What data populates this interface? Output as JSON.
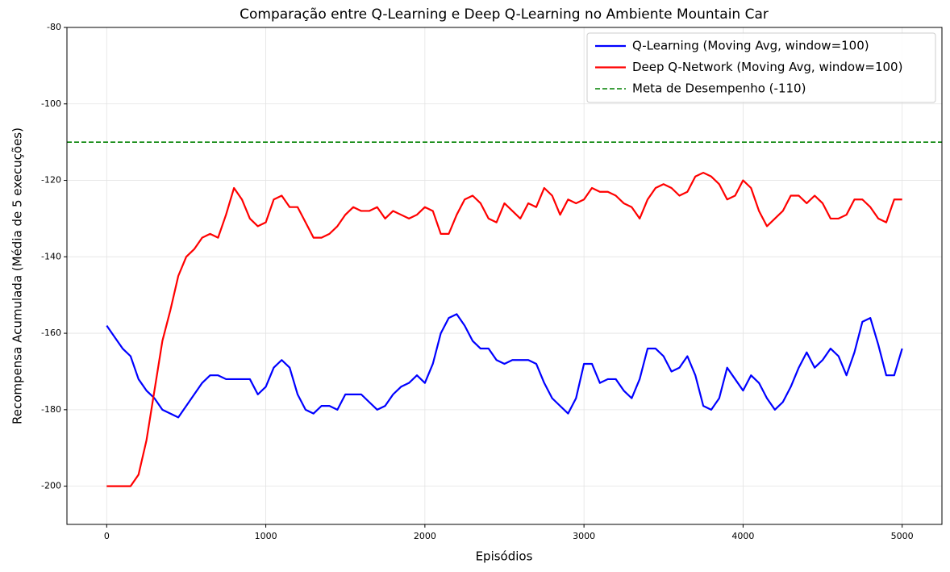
{
  "chart_data": {
    "type": "line",
    "title": "Comparação entre Q-Learning e Deep Q-Learning no Ambiente Mountain Car",
    "x_label": "Episódios",
    "y_label": "Recompensa Acumulada (Média de 5 execuções)",
    "x": [
      0,
      50,
      100,
      150,
      200,
      250,
      300,
      350,
      400,
      450,
      500,
      550,
      600,
      650,
      700,
      750,
      800,
      850,
      900,
      950,
      1000,
      1050,
      1100,
      1150,
      1200,
      1250,
      1300,
      1350,
      1400,
      1450,
      1500,
      1550,
      1600,
      1650,
      1700,
      1750,
      1800,
      1850,
      1900,
      1950,
      2000,
      2050,
      2100,
      2150,
      2200,
      2250,
      2300,
      2350,
      2400,
      2450,
      2500,
      2550,
      2600,
      2650,
      2700,
      2750,
      2800,
      2850,
      2900,
      2950,
      3000,
      3050,
      3100,
      3150,
      3200,
      3250,
      3300,
      3350,
      3400,
      3450,
      3500,
      3550,
      3600,
      3650,
      3700,
      3750,
      3800,
      3850,
      3900,
      3950,
      4000,
      4050,
      4100,
      4150,
      4200,
      4250,
      4300,
      4350,
      4400,
      4450,
      4500,
      4550,
      4600,
      4650,
      4700,
      4750,
      4800,
      4850,
      4900,
      4950,
      5000
    ],
    "series": [
      {
        "name": "Q-Learning (Moving Avg, window=100)",
        "color": "#0000ff",
        "values": [
          -158,
          -161,
          -164,
          -166,
          -172,
          -175,
          -177,
          -180,
          -181,
          -182,
          -179,
          -176,
          -173,
          -171,
          -171,
          -172,
          -172,
          -172,
          -172,
          -176,
          -174,
          -169,
          -167,
          -169,
          -176,
          -180,
          -181,
          -179,
          -179,
          -180,
          -176,
          -176,
          -176,
          -178,
          -180,
          -179,
          -176,
          -174,
          -173,
          -171,
          -173,
          -168,
          -160,
          -156,
          -155,
          -158,
          -162,
          -164,
          -164,
          -167,
          -168,
          -167,
          -167,
          -167,
          -168,
          -173,
          -177,
          -179,
          -181,
          -177,
          -168,
          -168,
          -173,
          -172,
          -172,
          -175,
          -177,
          -172,
          -164,
          -164,
          -166,
          -170,
          -169,
          -166,
          -171,
          -179,
          -180,
          -177,
          -169,
          -172,
          -175,
          -171,
          -173,
          -177,
          -180,
          -178,
          -174,
          -169,
          -165,
          -169,
          -167,
          -164,
          -166,
          -171,
          -165,
          -157,
          -156,
          -163,
          -171,
          -171,
          -164
        ]
      },
      {
        "name": "Deep Q-Network (Moving Avg, window=100)",
        "color": "#ff0000",
        "values": [
          -200,
          -200,
          -200,
          -200,
          -197,
          -188,
          -175,
          -162,
          -154,
          -145,
          -140,
          -138,
          -135,
          -134,
          -135,
          -129,
          -122,
          -125,
          -130,
          -132,
          -131,
          -125,
          -124,
          -127,
          -127,
          -131,
          -135,
          -135,
          -134,
          -132,
          -129,
          -127,
          -128,
          -128,
          -127,
          -130,
          -128,
          -129,
          -130,
          -129,
          -127,
          -128,
          -134,
          -134,
          -129,
          -125,
          -124,
          -126,
          -130,
          -131,
          -126,
          -128,
          -130,
          -126,
          -127,
          -122,
          -124,
          -129,
          -125,
          -126,
          -125,
          -122,
          -123,
          -123,
          -124,
          -126,
          -127,
          -130,
          -125,
          -122,
          -121,
          -122,
          -124,
          -123,
          -119,
          -118,
          -119,
          -121,
          -125,
          -124,
          -120,
          -122,
          -128,
          -132,
          -130,
          -128,
          -124,
          -124,
          -126,
          -124,
          -126,
          -130,
          -130,
          -129,
          -125,
          -125,
          -127,
          -130,
          -131,
          -125,
          -125
        ]
      }
    ],
    "reference_line": {
      "name": "Meta de Desempenho (-110)",
      "y": -110,
      "color": "#008000"
    },
    "xlim": [
      -250,
      5250
    ],
    "ylim": [
      -210,
      -80
    ],
    "xticks": [
      0,
      1000,
      2000,
      3000,
      4000,
      5000
    ],
    "yticks": [
      -200,
      -180,
      -160,
      -140,
      -120,
      -100,
      -80
    ],
    "grid": true,
    "legend": "upper-right"
  }
}
